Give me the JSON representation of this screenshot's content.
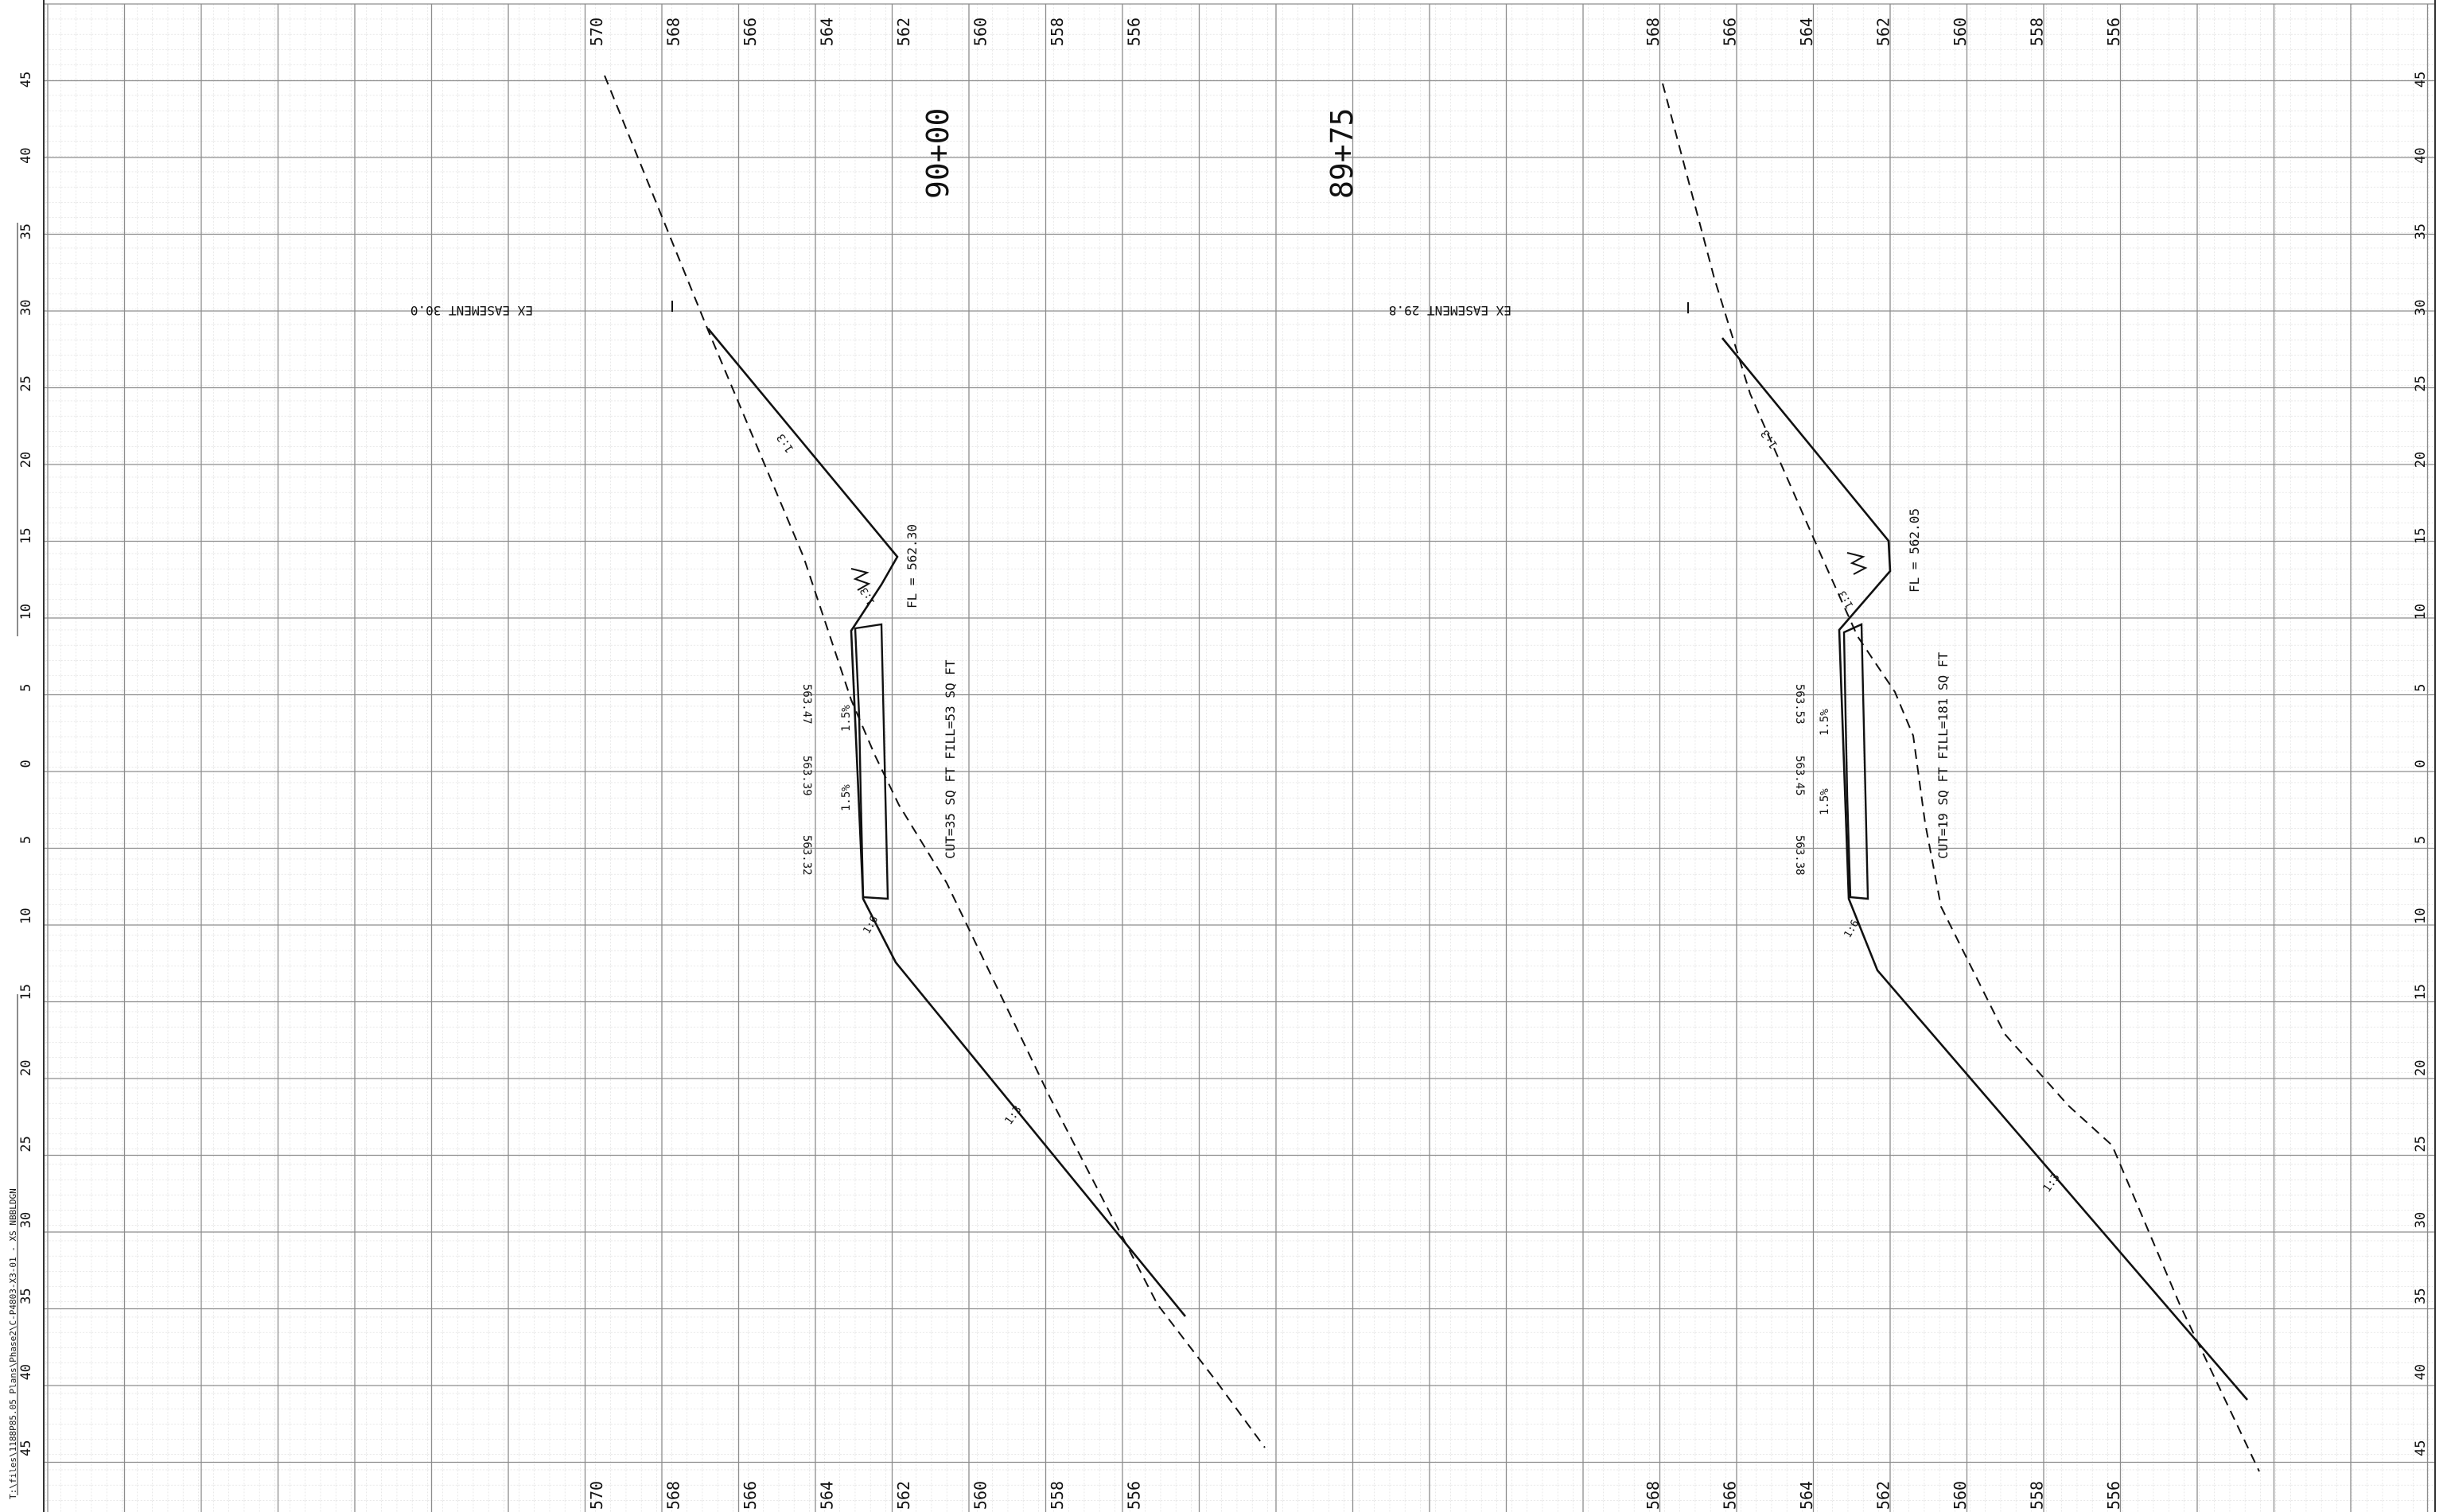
{
  "sheet": {
    "offset_labels": [
      "45",
      "40",
      "35",
      "30",
      "25",
      "20",
      "15",
      "10",
      "5",
      "0",
      "5",
      "10",
      "15",
      "20",
      "25",
      "30",
      "35",
      "40",
      "45"
    ],
    "path_note": "T:\\files\\1188P85.05 Plans\\Phase2\\C-P4803-X3-01 - XS NBBLDGN"
  },
  "sections": [
    {
      "station": "90+00",
      "elevation_labels": [
        "570",
        "568",
        "566",
        "564",
        "562",
        "560",
        "558",
        "556"
      ],
      "easement": "EX EASEMENT 30.0",
      "flowline": "FL = 562.30",
      "cut_fill": "CUT=35 SQ FT  FILL=53 SQ FT",
      "slope_upper": "1:3",
      "slope_lower": "1:3",
      "slope_swale": "1:3",
      "slope_shoulder": "1:6",
      "cross_slope_1": "1.5%",
      "cross_slope_2": "1.5%",
      "elev_left": "563.47",
      "elev_center": "563.39",
      "elev_right": "563.32"
    },
    {
      "station": "89+75",
      "elevation_labels": [
        "568",
        "566",
        "564",
        "562",
        "560",
        "558",
        "556"
      ],
      "easement": "EX EASEMENT 29.8",
      "flowline": "FL = 562.05",
      "cut_fill": "CUT=19 SQ FT  FILL=181 SQ FT",
      "slope_upper": "1:3",
      "slope_lower": "1:3",
      "slope_swale": "1:3",
      "slope_shoulder": "1:6",
      "cross_slope_1": "1.5%",
      "cross_slope_2": "1.5%",
      "elev_left": "563.53",
      "elev_center": "563.45",
      "elev_right": "563.38"
    }
  ],
  "colors": {
    "ink": "#111111",
    "grid_major": "#8a8a8a",
    "grid_minor": "#d6d6d6"
  }
}
